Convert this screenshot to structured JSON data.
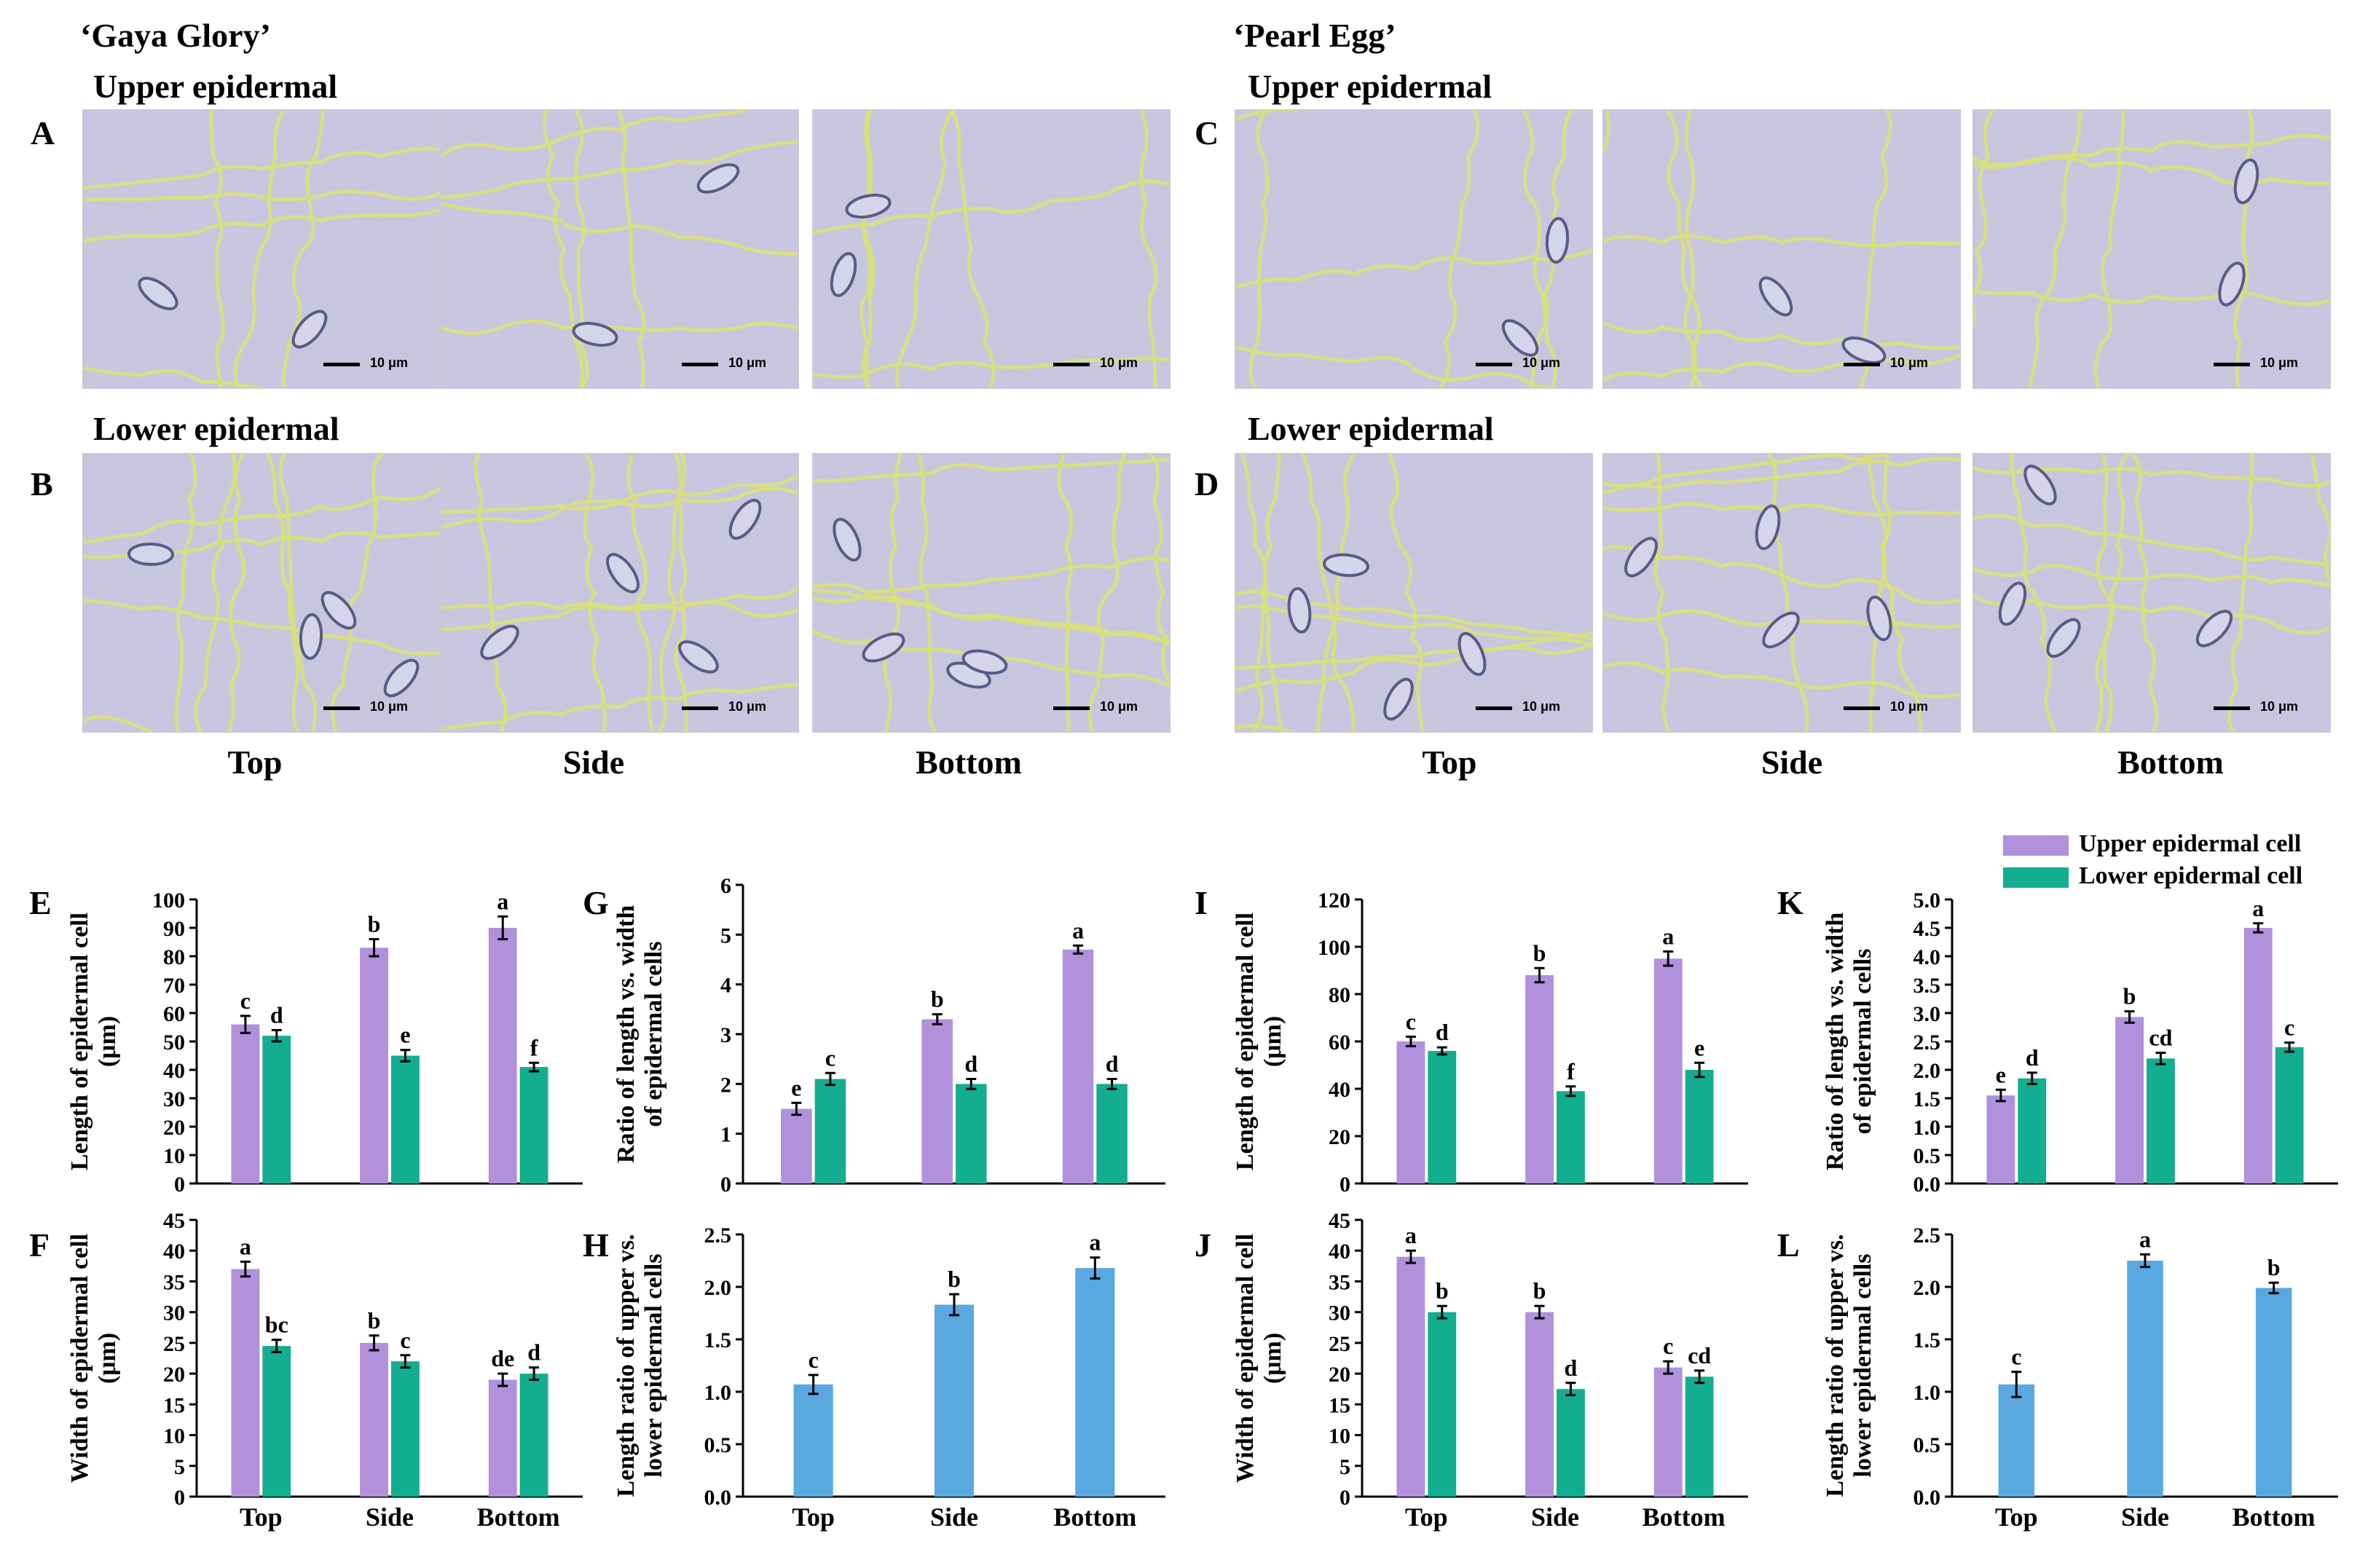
{
  "colors": {
    "upper": "#b190dc",
    "lower": "#13ad90",
    "ratio": "#59a8e0",
    "micro_bg": "#c8c6df",
    "wall": "#d8e07a"
  },
  "cultivars": {
    "left": "‘Gaya Glory’",
    "right": "‘Pearl Egg’"
  },
  "sections": {
    "upper": "Upper epidermal",
    "lower": "Lower epidermal"
  },
  "panels": {
    "A": "A",
    "B": "B",
    "C": "C",
    "D": "D"
  },
  "positions": [
    "Top",
    "Side",
    "Bottom"
  ],
  "scale_bar": "10 μm",
  "legend": {
    "upper": "Upper epidermal cell",
    "lower": "Lower epidermal cell"
  },
  "chart_data": [
    {
      "panel": "E",
      "type": "bar",
      "ylabel": [
        "Length of epidermal cell",
        "(μm)"
      ],
      "ylim": [
        0,
        100
      ],
      "yticks": [
        0,
        10,
        20,
        30,
        40,
        50,
        60,
        70,
        80,
        90,
        100
      ],
      "tick_decimals": 0,
      "categories": [
        "Top",
        "Side",
        "Bottom"
      ],
      "series": [
        {
          "name": "Upper epidermal cell",
          "values": [
            56,
            83,
            90
          ],
          "errors": [
            3,
            3,
            4
          ],
          "letters": [
            "c",
            "b",
            "a"
          ]
        },
        {
          "name": "Lower epidermal cell",
          "values": [
            52,
            45,
            41
          ],
          "errors": [
            2,
            2,
            1.5
          ],
          "letters": [
            "d",
            "e",
            "f"
          ]
        }
      ]
    },
    {
      "panel": "F",
      "type": "bar",
      "ylabel": [
        "Width of epidermal cell",
        "(μm)"
      ],
      "ylim": [
        0,
        45
      ],
      "yticks": [
        0,
        5,
        10,
        15,
        20,
        25,
        30,
        35,
        40,
        45
      ],
      "tick_decimals": 0,
      "categories": [
        "Top",
        "Side",
        "Bottom"
      ],
      "series": [
        {
          "name": "Upper epidermal cell",
          "values": [
            37,
            25,
            19
          ],
          "errors": [
            1.2,
            1.2,
            1
          ],
          "letters": [
            "a",
            "b",
            "de"
          ]
        },
        {
          "name": "Lower epidermal cell",
          "values": [
            24.5,
            22,
            20
          ],
          "errors": [
            1,
            1,
            1
          ],
          "letters": [
            "bc",
            "c",
            "d"
          ]
        }
      ]
    },
    {
      "panel": "G",
      "type": "bar",
      "ylabel": [
        "Ratio of length vs. width",
        "of epidermal cells"
      ],
      "ylim": [
        0,
        6
      ],
      "yticks": [
        0,
        1,
        2,
        3,
        4,
        5,
        6
      ],
      "tick_decimals": 0,
      "categories": [
        "Top",
        "Side",
        "Bottom"
      ],
      "series": [
        {
          "name": "Upper epidermal cell",
          "values": [
            1.5,
            3.3,
            4.7
          ],
          "errors": [
            0.12,
            0.1,
            0.08
          ],
          "letters": [
            "e",
            "b",
            "a"
          ]
        },
        {
          "name": "Lower epidermal cell",
          "values": [
            2.1,
            2.0,
            2.0
          ],
          "errors": [
            0.12,
            0.1,
            0.1
          ],
          "letters": [
            "c",
            "d",
            "d"
          ]
        }
      ]
    },
    {
      "panel": "H",
      "type": "bar",
      "ylabel": [
        "Length ratio of upper vs.",
        "lower epidermal cells"
      ],
      "ylim": [
        0,
        2.5
      ],
      "yticks": [
        0,
        0.5,
        1,
        1.5,
        2,
        2.5
      ],
      "tick_decimals": 1,
      "categories": [
        "Top",
        "Side",
        "Bottom"
      ],
      "series": [
        {
          "name": "Ratio",
          "values": [
            1.07,
            1.83,
            2.18
          ],
          "errors": [
            0.09,
            0.1,
            0.1
          ],
          "letters": [
            "c",
            "b",
            "a"
          ]
        }
      ]
    },
    {
      "panel": "I",
      "type": "bar",
      "ylabel": [
        "Length of epidermal cell",
        "(μm)"
      ],
      "ylim": [
        0,
        120
      ],
      "yticks": [
        0,
        20,
        40,
        60,
        80,
        100,
        120
      ],
      "tick_decimals": 0,
      "categories": [
        "Top",
        "Side",
        "Bottom"
      ],
      "series": [
        {
          "name": "Upper epidermal cell",
          "values": [
            60,
            88,
            95
          ],
          "errors": [
            2,
            3,
            3
          ],
          "letters": [
            "c",
            "b",
            "a"
          ]
        },
        {
          "name": "Lower epidermal cell",
          "values": [
            56,
            39,
            48
          ],
          "errors": [
            1.5,
            2,
            3
          ],
          "letters": [
            "d",
            "f",
            "e"
          ]
        }
      ]
    },
    {
      "panel": "J",
      "type": "bar",
      "ylabel": [
        "Width of epidermal cell",
        "(μm)"
      ],
      "ylim": [
        0,
        45
      ],
      "yticks": [
        0,
        5,
        10,
        15,
        20,
        25,
        30,
        35,
        40,
        45
      ],
      "tick_decimals": 0,
      "categories": [
        "Top",
        "Side",
        "Bottom"
      ],
      "series": [
        {
          "name": "Upper epidermal cell",
          "values": [
            39,
            30,
            21
          ],
          "errors": [
            1,
            1,
            1
          ],
          "letters": [
            "a",
            "b",
            "c"
          ]
        },
        {
          "name": "Lower epidermal cell",
          "values": [
            30,
            17.5,
            19.5
          ],
          "errors": [
            1,
            1,
            1
          ],
          "letters": [
            "b",
            "d",
            "cd"
          ]
        }
      ]
    },
    {
      "panel": "K",
      "type": "bar",
      "ylabel": [
        "Ratio of length vs. width",
        "of epidermal cells"
      ],
      "ylim": [
        0,
        5
      ],
      "yticks": [
        0,
        0.5,
        1,
        1.5,
        2,
        2.5,
        3,
        3.5,
        4,
        4.5,
        5
      ],
      "tick_decimals": 1,
      "categories": [
        "Top",
        "Side",
        "Bottom"
      ],
      "series": [
        {
          "name": "Upper epidermal cell",
          "values": [
            1.55,
            2.93,
            4.5
          ],
          "errors": [
            0.1,
            0.1,
            0.08
          ],
          "letters": [
            "e",
            "b",
            "a"
          ]
        },
        {
          "name": "Lower epidermal cell",
          "values": [
            1.85,
            2.2,
            2.4
          ],
          "errors": [
            0.1,
            0.1,
            0.08
          ],
          "letters": [
            "d",
            "cd",
            "c"
          ]
        }
      ]
    },
    {
      "panel": "L",
      "type": "bar",
      "ylabel": [
        "Length ratio of upper vs.",
        "lower epidermal cells"
      ],
      "ylim": [
        0,
        2.5
      ],
      "yticks": [
        0,
        0.5,
        1,
        1.5,
        2,
        2.5
      ],
      "tick_decimals": 1,
      "categories": [
        "Top",
        "Side",
        "Bottom"
      ],
      "series": [
        {
          "name": "Ratio",
          "values": [
            1.07,
            2.25,
            1.99
          ],
          "errors": [
            0.12,
            0.06,
            0.05
          ],
          "letters": [
            "c",
            "a",
            "b"
          ]
        }
      ]
    }
  ]
}
